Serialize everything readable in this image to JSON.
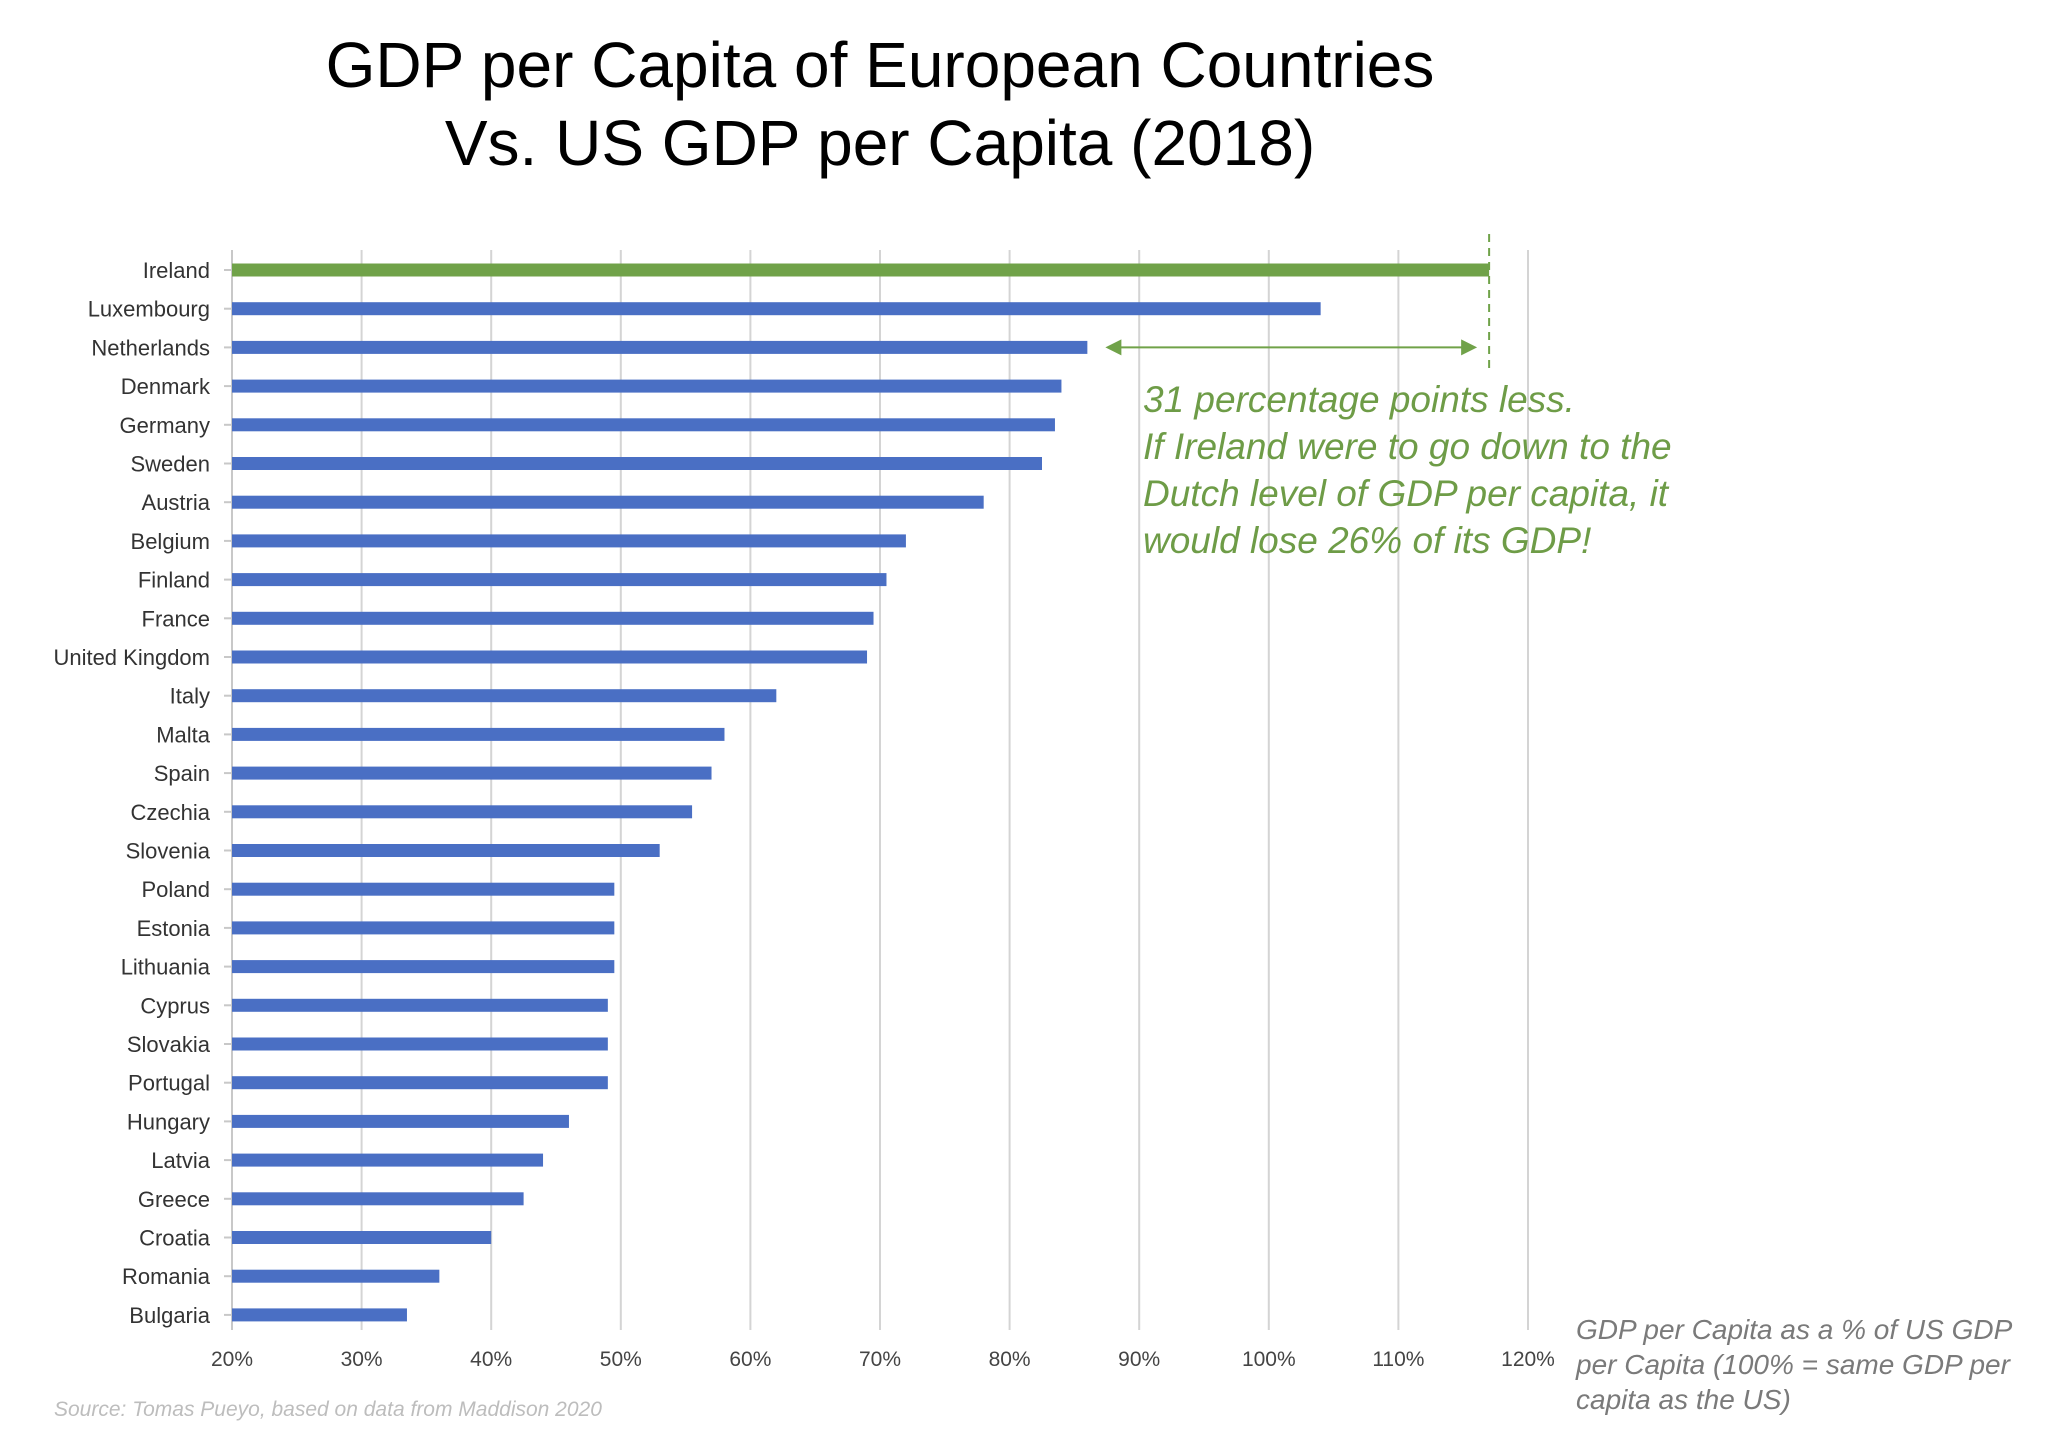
{
  "title": {
    "line1": "GDP per Capita of European Countries",
    "line2": "Vs. US GDP per Capita (2018)"
  },
  "annotation": {
    "lines": [
      "31 percentage points less.",
      "If Ireland were to go down to the",
      "Dutch level of GDP per capita, it",
      "would lose 26% of its GDP!"
    ],
    "color": "#6e9c47"
  },
  "x_axis_note": {
    "lines": [
      "GDP per Capita as a % of US GDP",
      "per Capita (100% = same GDP per",
      "capita as the US)"
    ]
  },
  "source": "Source: Tomas Pueyo, based on data from Maddison 2020",
  "chart_data": {
    "type": "bar",
    "orientation": "horizontal",
    "title": "GDP per Capita of European Countries Vs. US GDP per Capita (2018)",
    "xlabel": "GDP per Capita as a % of US GDP per Capita (100% = same GDP per capita as the US)",
    "ylabel": "",
    "xlim": [
      20,
      120
    ],
    "x_ticks": [
      "20%",
      "30%",
      "40%",
      "50%",
      "60%",
      "70%",
      "80%",
      "90%",
      "100%",
      "110%",
      "120%"
    ],
    "grid": "vertical",
    "categories": [
      "Ireland",
      "Luxembourg",
      "Netherlands",
      "Denmark",
      "Germany",
      "Sweden",
      "Austria",
      "Belgium",
      "Finland",
      "France",
      "United Kingdom",
      "Italy",
      "Malta",
      "Spain",
      "Czechia",
      "Slovenia",
      "Poland",
      "Estonia",
      "Lithuania",
      "Cyprus",
      "Slovakia",
      "Portugal",
      "Hungary",
      "Latvia",
      "Greece",
      "Croatia",
      "Romania",
      "Bulgaria"
    ],
    "values": [
      117,
      104,
      86,
      84,
      83.5,
      82.5,
      78,
      72,
      70.5,
      69.5,
      69,
      62,
      58,
      57,
      55.5,
      53,
      49.5,
      49.5,
      49.5,
      49,
      49,
      49,
      46,
      44,
      42.5,
      40,
      36,
      33.5
    ],
    "highlight": {
      "category": "Ireland",
      "color": "#70a249"
    },
    "bar_color": "#4a6fc4",
    "reference_line": {
      "value": 117,
      "style": "dashed",
      "color": "#70a249"
    },
    "difference_arrow": {
      "from": 86,
      "to": 117,
      "category": "Netherlands",
      "color": "#70a249"
    }
  }
}
